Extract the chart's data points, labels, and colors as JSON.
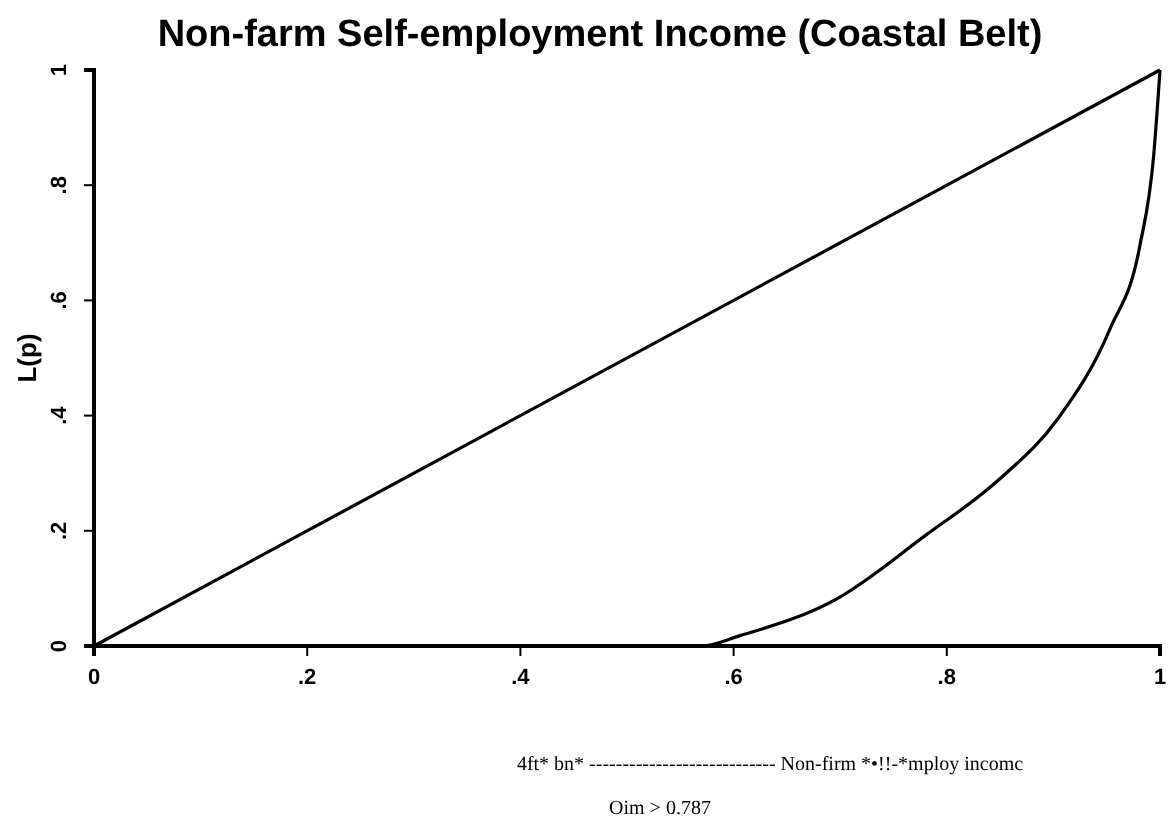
{
  "chart_data": {
    "type": "line",
    "title": "Non-farm Self-employment Income (Coastal Belt)",
    "ylabel": "L(p)",
    "xlim": [
      0,
      1
    ],
    "ylim": [
      0,
      1
    ],
    "xticks": [
      0,
      {
        "value": 0.2,
        "label": ".2"
      },
      {
        "value": 0.4,
        "label": ".4"
      },
      {
        "value": 0.6,
        "label": ".6"
      },
      {
        "value": 0.8,
        "label": ".8"
      },
      1
    ],
    "yticks": [
      0,
      {
        "value": 0.2,
        "label": ".2"
      },
      {
        "value": 0.4,
        "label": ".4"
      },
      {
        "value": 0.6,
        "label": ".6"
      },
      {
        "value": 0.8,
        "label": ".8"
      },
      1
    ],
    "grid": false,
    "marker": "none",
    "line_style": "solid",
    "series": [
      {
        "color": "#000000",
        "x": [
          0,
          1
        ],
        "values": [
          0,
          1
        ]
      },
      {
        "color": "#000000",
        "x": [
          0,
          0.57,
          0.606,
          0.696,
          0.78,
          0.849,
          0.904,
          0.953,
          0.981,
          0.994,
          1
        ],
        "values": [
          0,
          0,
          0.018,
          0.081,
          0.192,
          0.289,
          0.394,
          0.55,
          0.694,
          0.85,
          1
        ]
      }
    ],
    "annotations": [
      "4ft* bn* ---------------------------- Non-firm *•!!-*mploy incomc",
      "Oim > 0.787"
    ]
  }
}
